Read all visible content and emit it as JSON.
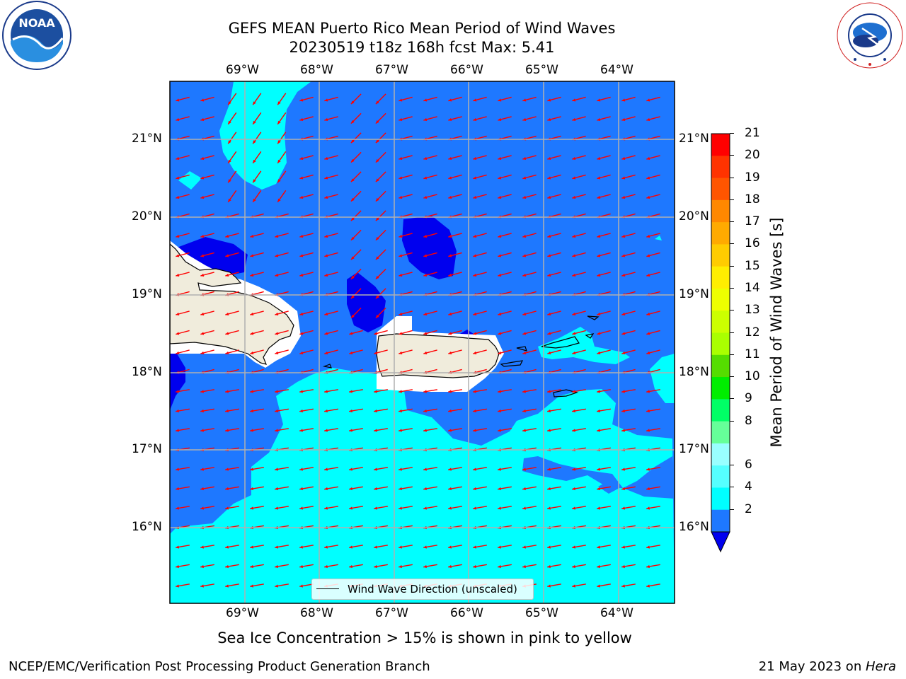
{
  "header": {
    "title_line1": "GEFS MEAN Puerto Rico Mean Period of Wind Waves",
    "title_line2": "20230519 t18z 168h fcst   Max: 5.41"
  },
  "logos": {
    "left": "NOAA",
    "left_ring_text": "NATIONAL OCEANIC AND ATMOSPHERIC ADMINISTRATION · U.S. DEPARTMENT OF COMMERCE",
    "right_ring_text": "NATIONAL WEATHER SERVICE"
  },
  "map": {
    "lon_labels": [
      "69°W",
      "68°W",
      "67°W",
      "66°W",
      "65°W",
      "64°W"
    ],
    "lat_labels": [
      "21°N",
      "20°N",
      "19°N",
      "18°N",
      "17°N",
      "16°N"
    ],
    "legend_label": "Wind Wave Direction (unscaled)",
    "colors": {
      "land": "#f0ecdc",
      "level_2_4": "#1e78ff",
      "level_4_6": "#00ffff",
      "below_2": "#0000ee",
      "arrow": "#ff0000",
      "grid": "#b0b0b0"
    }
  },
  "colorbar": {
    "title": "Mean Period of Wind Waves [s]",
    "ticks": [
      "21",
      "20",
      "19",
      "18",
      "17",
      "16",
      "15",
      "14",
      "13",
      "12",
      "11",
      "10",
      "9",
      "8",
      "6",
      "4",
      "2"
    ],
    "colors": [
      "#ff0000",
      "#ff3300",
      "#ff5500",
      "#ff8800",
      "#ffaa00",
      "#ffcc00",
      "#ffee00",
      "#eeff00",
      "#ccff00",
      "#aaff00",
      "#55dd00",
      "#00ee00",
      "#00ff66",
      "#66ff99",
      "#99ffff",
      "#55ffff",
      "#00ffff",
      "#1e78ff"
    ],
    "extend_color": "#0000ee"
  },
  "footer": {
    "ice_note": "Sea Ice Concentration > 15% is shown in pink to yellow",
    "branch": "NCEP/EMC/Verification Post Processing Product Generation Branch",
    "date": "21 May 2023 on ",
    "host": "Hera"
  }
}
